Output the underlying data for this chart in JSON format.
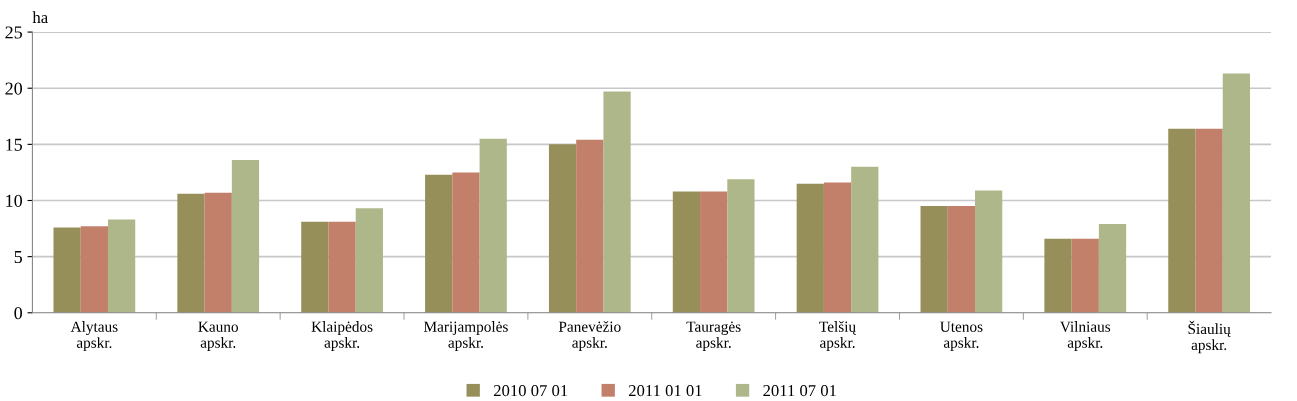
{
  "chart_data": {
    "type": "bar",
    "ylabel": "ha",
    "categories": [
      "Alytaus\napskr.",
      "Kauno\napskr.",
      "Klaipėdos\napskr.",
      "Marijampolės\napskr.",
      "Panevėžio\napskr.",
      "Tauragės\napskr.",
      "Telšių\napskr.",
      "Utenos\napskr.",
      "Vilniaus\napskr.",
      "Šiaulių\napskr."
    ],
    "series": [
      {
        "name": "2010 07 01",
        "color": "#968f5a",
        "values": [
          7.6,
          10.6,
          8.1,
          12.3,
          15.0,
          10.8,
          11.5,
          9.5,
          6.6,
          16.4
        ]
      },
      {
        "name": "2011 01 01",
        "color": "#c27f6a",
        "values": [
          7.7,
          10.7,
          8.1,
          12.5,
          15.4,
          10.8,
          11.6,
          9.5,
          6.6,
          16.4
        ]
      },
      {
        "name": "2011 07 01",
        "color": "#adb78a",
        "values": [
          8.3,
          13.6,
          9.3,
          15.5,
          19.7,
          11.9,
          13.0,
          10.9,
          7.9,
          21.3
        ]
      }
    ],
    "ylim": [
      0,
      25
    ],
    "yticks": [
      0,
      5,
      10,
      15,
      20,
      25
    ],
    "grid": "y",
    "legend": "bottom"
  }
}
